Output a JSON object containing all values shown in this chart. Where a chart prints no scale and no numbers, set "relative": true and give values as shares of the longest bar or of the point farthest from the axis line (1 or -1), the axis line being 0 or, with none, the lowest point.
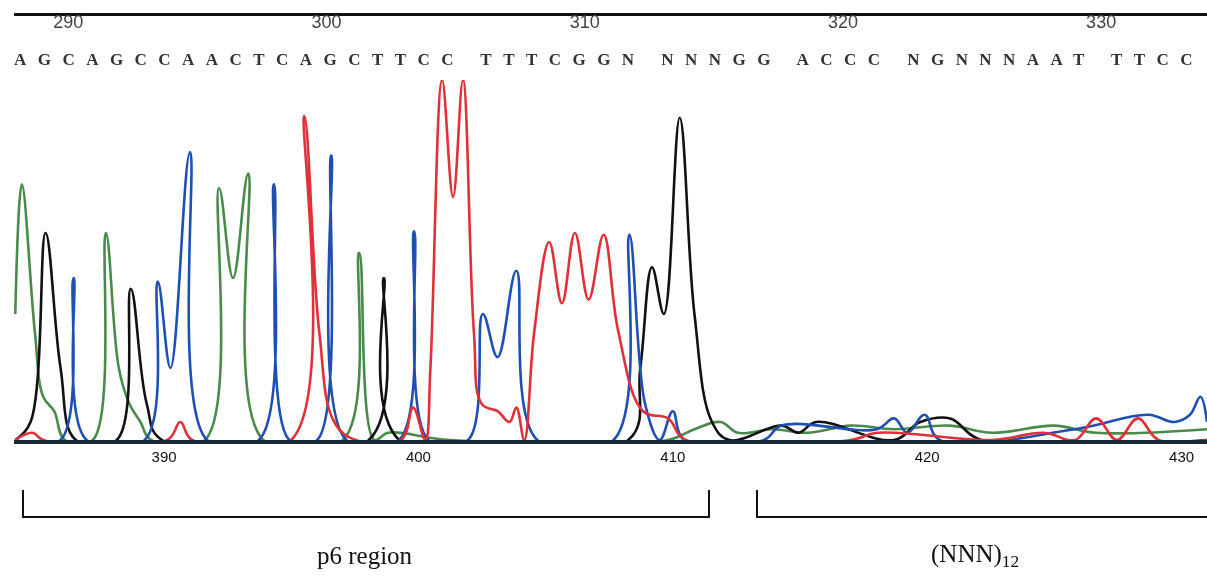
{
  "chart_data": {
    "type": "line",
    "relative": true,
    "marker": "none",
    "line_style": "solid",
    "xlim": [
      384.1,
      431
    ],
    "xticks": [
      390,
      400,
      410,
      420,
      430
    ],
    "x2lim": [
      287.9,
      334.1
    ],
    "x2ticks": [
      290,
      300,
      310,
      320,
      330
    ],
    "annotations": [
      "AGCAGCCAACTCAGCTTCC TTTCGGN NNNGG ACCC NGNNNAAT TTCC",
      "p6 region",
      "(NNN)$_{12}$"
    ],
    "series": [
      {
        "color": "#4a8a4a",
        "x": [
          384.15,
          384.41,
          384.92,
          385.25,
          385.68,
          386.1,
          387.2,
          387.71,
          388.22,
          388.64,
          389.07,
          389.49,
          391.61,
          392.16,
          392.71,
          393.31,
          393.9,
          397.03,
          397.67,
          398.26,
          398.81,
          401.25,
          409.81,
          410.85,
          411.88,
          412.56,
          413.92,
          415.29,
          417.0,
          418.7,
          420.9,
          422.54,
          425.0,
          426.64,
          431.0
        ],
        "values": [
          0.35,
          0.71,
          0.3,
          0.12,
          0.08,
          0,
          0,
          0.575,
          0.2,
          0.1,
          0.05,
          0,
          0,
          0.7,
          0.45,
          0.74,
          0,
          0,
          0.52,
          0,
          0.02,
          0,
          0,
          0.03,
          0.05,
          0.02,
          0.03,
          0.02,
          0.04,
          0.03,
          0.04,
          0.02,
          0.04,
          0.02,
          0.03
        ]
      },
      {
        "color": "#111111",
        "x": [
          384.15,
          384.75,
          385.34,
          385.93,
          386.53,
          388.14,
          388.69,
          389.32,
          389.92,
          398.05,
          398.64,
          399.24,
          408.25,
          408.72,
          409.18,
          409.65,
          410.27,
          410.85,
          411.54,
          412.22,
          414.27,
          414.95,
          415.63,
          418.7,
          419.73,
          420.9,
          422.13,
          431.0
        ],
        "values": [
          0,
          0.05,
          0.575,
          0.2,
          0,
          0,
          0.42,
          0.1,
          0,
          0,
          0.45,
          0,
          0,
          0.2,
          0.48,
          0.35,
          0.895,
          0.35,
          0.05,
          0,
          0.04,
          0.02,
          0.05,
          0,
          0.05,
          0.06,
          0,
          0
        ]
      },
      {
        "color": "#1f4fb0",
        "x": [
          384.15,
          385.93,
          386.44,
          386.95,
          389.24,
          389.75,
          390.25,
          391.02,
          391.69,
          393.73,
          394.32,
          394.92,
          396.02,
          396.57,
          397.16,
          399.24,
          399.83,
          400.39,
          401.95,
          402.53,
          403.11,
          403.85,
          404.67,
          407.67,
          408.29,
          408.91,
          409.49,
          410.0,
          410.44,
          413.58,
          414.27,
          418.02,
          418.7,
          419.22,
          419.9,
          420.49,
          425.82,
          428.69,
          429.71,
          430.33,
          430.74,
          431.0
        ],
        "values": [
          0,
          0,
          0.45,
          0,
          0,
          0.44,
          0.2,
          0.8,
          0,
          0,
          0.71,
          0,
          0,
          0.79,
          0,
          0,
          0.58,
          0,
          0,
          0.35,
          0.23,
          0.47,
          0,
          0,
          0.57,
          0.1,
          0,
          0.08,
          0,
          0,
          0.04,
          0.03,
          0.06,
          0.02,
          0.07,
          0,
          0.03,
          0.07,
          0.05,
          0.07,
          0.12,
          0.05
        ]
      },
      {
        "color": "#e0303a",
        "x": [
          384.15,
          384.83,
          385.25,
          390.13,
          390.64,
          391.1,
          395.0,
          395.51,
          396.1,
          396.69,
          397.54,
          399.32,
          399.79,
          400.27,
          400.47,
          400.93,
          401.36,
          401.75,
          402.18,
          402.49,
          403.11,
          403.58,
          403.85,
          404.16,
          404.55,
          405.14,
          405.64,
          406.15,
          406.69,
          407.28,
          407.86,
          408.83,
          409.81,
          410.51,
          417.0,
          418.02,
          422.54,
          424.59,
          425.82,
          426.64,
          427.46,
          428.28,
          429.1,
          431.0
        ],
        "values": [
          0,
          0.02,
          0,
          0,
          0.05,
          0,
          0,
          0.9,
          0.3,
          0.05,
          0,
          0,
          0.09,
          0,
          0.2,
          1,
          0.675,
          1,
          0.3,
          0.1,
          0.08,
          0.05,
          0.09,
          0,
          0.3,
          0.55,
          0.38,
          0.575,
          0.39,
          0.57,
          0.3,
          0.08,
          0.06,
          0,
          0,
          0.02,
          0,
          0.02,
          0,
          0.06,
          0,
          0.06,
          0,
          0
        ]
      }
    ]
  }
}
